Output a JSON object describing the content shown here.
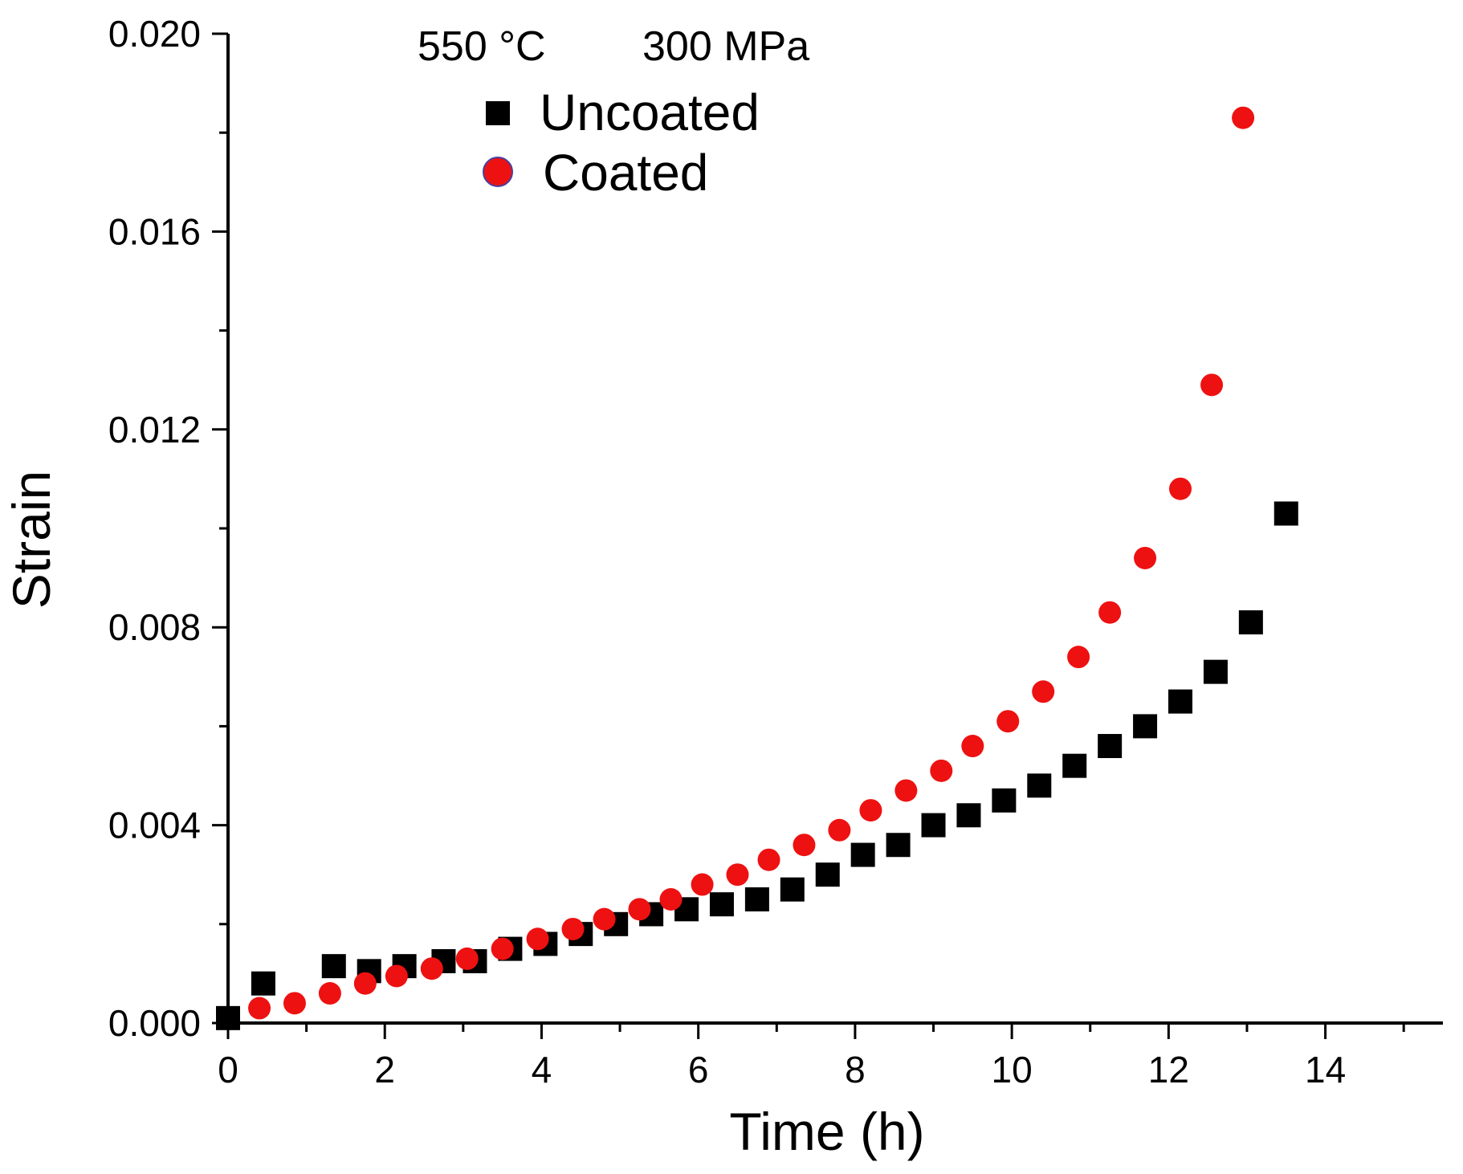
{
  "chart_data": {
    "type": "scatter",
    "title": "",
    "xlabel": "Time (h)",
    "ylabel": "Strain",
    "xlim": [
      0,
      15.5
    ],
    "ylim": [
      0,
      0.02
    ],
    "xticks": [
      0,
      2,
      4,
      6,
      8,
      10,
      12,
      14
    ],
    "xtick_labels": [
      "0",
      "2",
      "4",
      "6",
      "8",
      "10",
      "12",
      "14"
    ],
    "yticks": [
      0,
      0.004,
      0.008,
      0.012,
      0.016,
      0.02
    ],
    "ytick_labels": [
      "0.000",
      "0.004",
      "0.008",
      "0.012",
      "0.016",
      "0.020"
    ],
    "annotations": [
      "550 °C",
      "300 MPa"
    ],
    "legend": {
      "position": "top-left",
      "entries": [
        "Uncoated",
        "Coated"
      ]
    },
    "series": [
      {
        "name": "Uncoated",
        "marker": "square",
        "color": "#000000",
        "points": [
          [
            0.0,
            0.0001
          ],
          [
            0.45,
            0.0008
          ],
          [
            1.35,
            0.00115
          ],
          [
            1.8,
            0.00105
          ],
          [
            2.25,
            0.00115
          ],
          [
            2.75,
            0.00125
          ],
          [
            3.15,
            0.00125
          ],
          [
            3.6,
            0.0015
          ],
          [
            4.05,
            0.0016
          ],
          [
            4.5,
            0.0018
          ],
          [
            4.95,
            0.002
          ],
          [
            5.4,
            0.0022
          ],
          [
            5.85,
            0.0023
          ],
          [
            6.3,
            0.0024
          ],
          [
            6.75,
            0.0025
          ],
          [
            7.2,
            0.0027
          ],
          [
            7.65,
            0.003
          ],
          [
            8.1,
            0.0034
          ],
          [
            8.55,
            0.0036
          ],
          [
            9.0,
            0.004
          ],
          [
            9.45,
            0.0042
          ],
          [
            9.9,
            0.0045
          ],
          [
            10.35,
            0.0048
          ],
          [
            10.8,
            0.0052
          ],
          [
            11.25,
            0.0056
          ],
          [
            11.7,
            0.006
          ],
          [
            12.15,
            0.0065
          ],
          [
            12.6,
            0.0071
          ],
          [
            13.05,
            0.0081
          ],
          [
            13.5,
            0.0103
          ]
        ]
      },
      {
        "name": "Coated",
        "marker": "circle",
        "color": "#ee1111",
        "points": [
          [
            0.4,
            0.0003
          ],
          [
            0.85,
            0.0004
          ],
          [
            1.3,
            0.0006
          ],
          [
            1.75,
            0.0008
          ],
          [
            2.15,
            0.00095
          ],
          [
            2.6,
            0.0011
          ],
          [
            3.05,
            0.0013
          ],
          [
            3.5,
            0.0015
          ],
          [
            3.95,
            0.0017
          ],
          [
            4.4,
            0.0019
          ],
          [
            4.8,
            0.0021
          ],
          [
            5.25,
            0.0023
          ],
          [
            5.65,
            0.0025
          ],
          [
            6.05,
            0.0028
          ],
          [
            6.5,
            0.003
          ],
          [
            6.9,
            0.0033
          ],
          [
            7.35,
            0.0036
          ],
          [
            7.8,
            0.0039
          ],
          [
            8.2,
            0.0043
          ],
          [
            8.65,
            0.0047
          ],
          [
            9.1,
            0.0051
          ],
          [
            9.5,
            0.0056
          ],
          [
            9.95,
            0.0061
          ],
          [
            10.4,
            0.0067
          ],
          [
            10.85,
            0.0074
          ],
          [
            11.25,
            0.0083
          ],
          [
            11.7,
            0.0094
          ],
          [
            12.15,
            0.0108
          ],
          [
            12.55,
            0.0129
          ],
          [
            12.95,
            0.0183
          ]
        ]
      }
    ]
  }
}
